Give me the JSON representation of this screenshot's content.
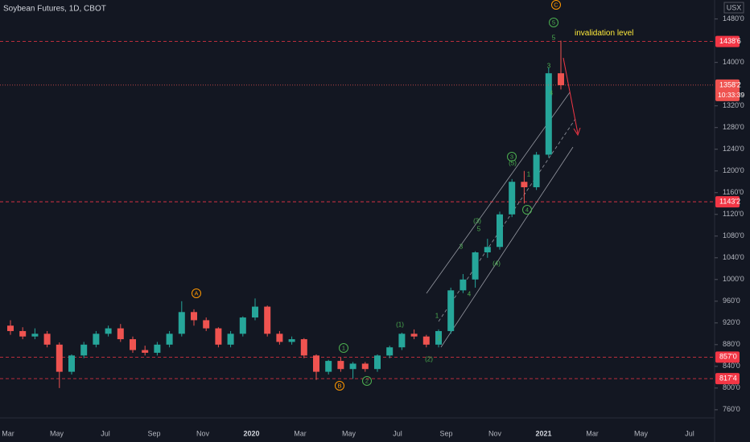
{
  "chart_data": {
    "type": "candlestick",
    "title": "Soybean Futures, 1D, CBOT",
    "currency": "USX",
    "up_color": "#26a69a",
    "down_color": "#ef5350",
    "level_color": "#f23645",
    "categories": [
      null,
      null,
      null,
      null,
      null,
      null,
      null,
      null,
      null,
      null,
      null,
      null,
      null,
      null,
      null,
      null,
      null,
      null,
      null,
      null,
      null,
      null,
      null,
      null,
      null,
      null,
      null,
      null,
      null,
      null,
      null,
      null,
      null,
      null,
      null,
      null,
      null,
      null,
      null,
      null,
      null,
      null,
      null,
      null,
      null,
      null
    ],
    "open": [
      915,
      905,
      895,
      900,
      880,
      830,
      860,
      880,
      900,
      910,
      890,
      870,
      865,
      880,
      900,
      940,
      925,
      910,
      880,
      900,
      930,
      950,
      900,
      885,
      890,
      860,
      830,
      850,
      835,
      845,
      835,
      860,
      875,
      900,
      895,
      880,
      905,
      980,
      1000,
      1050,
      1060,
      1120,
      1180,
      1170,
      1230,
      1380
    ],
    "high": [
      925,
      912,
      910,
      905,
      884,
      862,
      885,
      905,
      915,
      918,
      895,
      878,
      885,
      905,
      960,
      945,
      930,
      912,
      905,
      932,
      965,
      952,
      905,
      895,
      892,
      862,
      852,
      856,
      848,
      848,
      862,
      878,
      902,
      908,
      898,
      908,
      985,
      1010,
      1052,
      1075,
      1125,
      1185,
      1200,
      1235,
      1390,
      1440
    ],
    "low": [
      898,
      890,
      890,
      875,
      800,
      825,
      855,
      875,
      895,
      885,
      865,
      860,
      860,
      875,
      895,
      915,
      905,
      875,
      875,
      895,
      925,
      895,
      880,
      880,
      855,
      815,
      825,
      830,
      817,
      830,
      830,
      855,
      870,
      890,
      875,
      875,
      900,
      975,
      985,
      1040,
      1055,
      1115,
      1140,
      1165,
      1225,
      1350
    ],
    "close": [
      905,
      895,
      900,
      880,
      830,
      860,
      880,
      900,
      910,
      890,
      870,
      865,
      880,
      900,
      940,
      925,
      910,
      880,
      900,
      930,
      950,
      900,
      885,
      890,
      860,
      830,
      850,
      835,
      845,
      835,
      860,
      875,
      900,
      895,
      880,
      905,
      980,
      1000,
      1050,
      1060,
      1120,
      1180,
      1170,
      1230,
      1380,
      1358
    ],
    "ylim": [
      745,
      1515
    ],
    "yticks": [
      {
        "value": 760,
        "label": "760'0"
      },
      {
        "value": 800,
        "label": "800'0"
      },
      {
        "value": 840,
        "label": "840'0"
      },
      {
        "value": 880,
        "label": "880'0"
      },
      {
        "value": 920,
        "label": "920'0"
      },
      {
        "value": 960,
        "label": "960'0"
      },
      {
        "value": 1000,
        "label": "1000'0"
      },
      {
        "value": 1040,
        "label": "1040'0"
      },
      {
        "value": 1080,
        "label": "1080'0"
      },
      {
        "value": 1120,
        "label": "1120'0"
      },
      {
        "value": 1160,
        "label": "1160'0"
      },
      {
        "value": 1200,
        "label": "1200'0"
      },
      {
        "value": 1240,
        "label": "1240'0"
      },
      {
        "value": 1280,
        "label": "1280'0"
      },
      {
        "value": 1320,
        "label": "1320'0"
      },
      {
        "value": 1400,
        "label": "1400'0"
      },
      {
        "value": 1480,
        "label": "1480'0"
      }
    ],
    "x_labels": [
      "Mar",
      "May",
      "Jul",
      "Sep",
      "Nov",
      "2020",
      "Mar",
      "May",
      "Jul",
      "Sep",
      "Nov",
      "2021",
      "Mar",
      "May",
      "Jul"
    ],
    "levels": [
      {
        "value": 1438.6,
        "label": "1438'6"
      },
      {
        "value": 1143.2,
        "label": "1143'2"
      },
      {
        "value": 857,
        "label": "857'0"
      },
      {
        "value": 817.4,
        "label": "817'4"
      }
    ],
    "last_price": {
      "value": 1358.2,
      "label": "1358'2",
      "countdown": "10:33:39"
    },
    "annotations": [
      "invalidation level",
      "C",
      "5",
      "A",
      "B",
      "1",
      "2",
      "3",
      "4",
      "(1)",
      "(2)",
      "(3)",
      "(4)",
      "(5)",
      "1",
      "2",
      "3",
      "4",
      "5",
      "1",
      "3",
      "4",
      "5"
    ]
  }
}
